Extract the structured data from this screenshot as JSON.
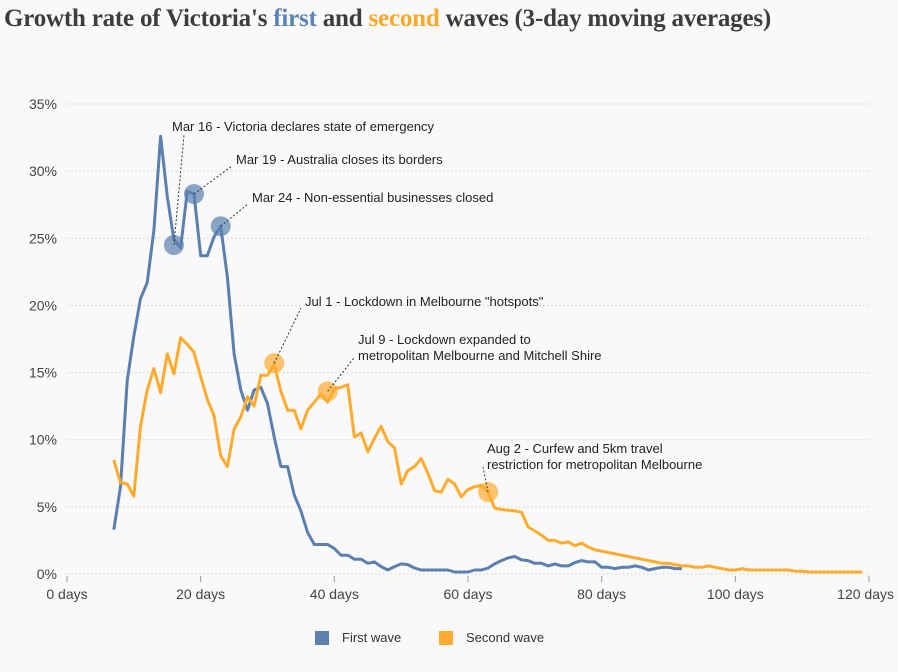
{
  "title": {
    "before": "Growth rate of Victoria's ",
    "first": "first",
    "middle": " and ",
    "second": "second",
    "after": " waves (3-day moving averages)"
  },
  "colors": {
    "first": "#5b80b0",
    "second": "#ffab2e",
    "first_title": "#5b83b7",
    "second_title": "#f9a925"
  },
  "chart_data": {
    "type": "line",
    "xlim": [
      0,
      120
    ],
    "ylim": [
      0,
      35
    ],
    "x_ticks": [
      0,
      20,
      40,
      60,
      80,
      100,
      120
    ],
    "x_tick_labels": [
      "0 days",
      "20 days",
      "40 days",
      "60 days",
      "80 days",
      "100 days",
      "120 days"
    ],
    "y_ticks": [
      0,
      5,
      10,
      15,
      20,
      25,
      30,
      35
    ],
    "y_tick_labels": [
      "0%",
      "5%",
      "10%",
      "15%",
      "20%",
      "25%",
      "30%",
      "35%"
    ],
    "grid": "horizontal dotted",
    "legend": "bottom",
    "series": [
      {
        "name": "First wave",
        "start_day": 7,
        "values": [
          3.3,
          6.5,
          14.4,
          17.7,
          20.5,
          21.7,
          25.6,
          32.6,
          28.1,
          24.9,
          24.3,
          28.5,
          28.3,
          23.7,
          23.7,
          25.1,
          25.9,
          22.1,
          16.4,
          13.7,
          12.2,
          13.7,
          13.9,
          12.7,
          10.2,
          8.0,
          8.0,
          5.9,
          4.7,
          3.1,
          2.2,
          2.2,
          2.2,
          1.9,
          1.4,
          1.4,
          1.1,
          1.1,
          0.8,
          0.9,
          0.55,
          0.3,
          0.55,
          0.75,
          0.7,
          0.45,
          0.3,
          0.3,
          0.3,
          0.3,
          0.3,
          0.15,
          0.15,
          0.15,
          0.3,
          0.3,
          0.45,
          0.75,
          1.0,
          1.2,
          1.3,
          1.05,
          1.0,
          0.8,
          0.8,
          0.6,
          0.75,
          0.6,
          0.6,
          0.85,
          1.0,
          0.9,
          0.9,
          0.5,
          0.5,
          0.4,
          0.5,
          0.5,
          0.6,
          0.5,
          0.3,
          0.4,
          0.5,
          0.5,
          0.4,
          0.4
        ]
      },
      {
        "name": "Second wave",
        "start_day": 7,
        "values": [
          8.5,
          6.8,
          6.7,
          5.8,
          11.0,
          13.7,
          15.3,
          13.5,
          16.4,
          14.9,
          17.6,
          17.1,
          16.5,
          14.7,
          13.0,
          11.8,
          8.8,
          8.0,
          10.8,
          11.7,
          13.2,
          12.5,
          14.8,
          14.8,
          15.6,
          13.6,
          12.2,
          12.2,
          10.8,
          12.2,
          12.8,
          13.4,
          12.8,
          13.8,
          13.9,
          14.1,
          10.2,
          10.5,
          9.1,
          10.1,
          11.0,
          9.85,
          9.4,
          6.7,
          7.7,
          8.0,
          8.6,
          7.5,
          6.2,
          6.1,
          7.05,
          6.7,
          5.75,
          6.3,
          6.5,
          6.6,
          6.1,
          4.9,
          4.8,
          4.75,
          4.7,
          4.6,
          3.5,
          3.2,
          2.9,
          2.5,
          2.5,
          2.3,
          2.4,
          2.1,
          2.3,
          2.0,
          1.8,
          1.7,
          1.6,
          1.5,
          1.4,
          1.3,
          1.2,
          1.1,
          1.0,
          0.9,
          0.8,
          0.8,
          0.7,
          0.6,
          0.6,
          0.5,
          0.5,
          0.6,
          0.5,
          0.4,
          0.3,
          0.3,
          0.4,
          0.3,
          0.3,
          0.3,
          0.3,
          0.3,
          0.3,
          0.3,
          0.2,
          0.2,
          0.15,
          0.15,
          0.15,
          0.15,
          0.15,
          0.15,
          0.15,
          0.15,
          0.15
        ]
      }
    ],
    "annotations": [
      {
        "series": 0,
        "day": 16,
        "value": 24.5,
        "lines": [
          "Mar 16 - Victoria declares state of emergency"
        ]
      },
      {
        "series": 0,
        "day": 19,
        "value": 28.3,
        "lines": [
          "Mar 19 - Australia closes its borders"
        ]
      },
      {
        "series": 0,
        "day": 23,
        "value": 25.9,
        "lines": [
          "Mar 24 - Non-essential businesses closed"
        ]
      },
      {
        "series": 1,
        "day": 31,
        "value": 15.7,
        "lines": [
          "Jul 1 - Lockdown in Melbourne \"hotspots\""
        ]
      },
      {
        "series": 1,
        "day": 39,
        "value": 13.6,
        "lines": [
          "Jul 9 - Lockdown expanded to",
          "metropolitan Melbourne and Mitchell Shire"
        ]
      },
      {
        "series": 1,
        "day": 63,
        "value": 6.1,
        "lines": [
          "Aug 2 - Curfew and 5km travel",
          "restriction for metropolitan Melbourne"
        ]
      }
    ]
  }
}
